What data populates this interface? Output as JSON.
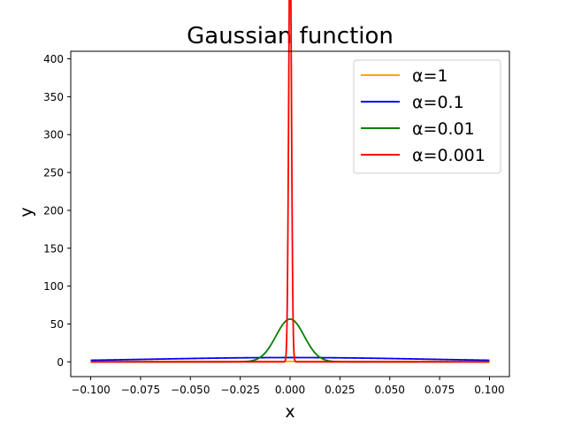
{
  "chart_data": {
    "type": "line",
    "title": "Gaussian function",
    "xlabel": "x",
    "ylabel": "y",
    "xlim": [
      -0.11,
      0.11
    ],
    "ylim": [
      -19.5,
      410
    ],
    "x_range": [
      -0.1,
      0.1
    ],
    "xticks": [
      -0.1,
      -0.075,
      -0.05,
      -0.025,
      0.0,
      0.025,
      0.05,
      0.075,
      0.1
    ],
    "xtick_labels": [
      "−0.100",
      "−0.075",
      "−0.050",
      "−0.025",
      "0.000",
      "0.025",
      "0.050",
      "0.075",
      "0.100"
    ],
    "yticks": [
      0,
      50,
      100,
      150,
      200,
      250,
      300,
      350,
      400
    ],
    "ytick_labels": [
      "0",
      "50",
      "100",
      "150",
      "200",
      "250",
      "300",
      "350",
      "400"
    ],
    "legend_position": "top-right",
    "series": [
      {
        "name": "α=1",
        "color": "#ffa500",
        "alpha": 1.0
      },
      {
        "name": "α=0.1",
        "color": "#0000ff",
        "alpha": 0.1
      },
      {
        "name": "α=0.01",
        "color": "#008000",
        "alpha": 0.01
      },
      {
        "name": "α=0.001",
        "color": "#ff0000",
        "alpha": 0.001
      }
    ]
  }
}
